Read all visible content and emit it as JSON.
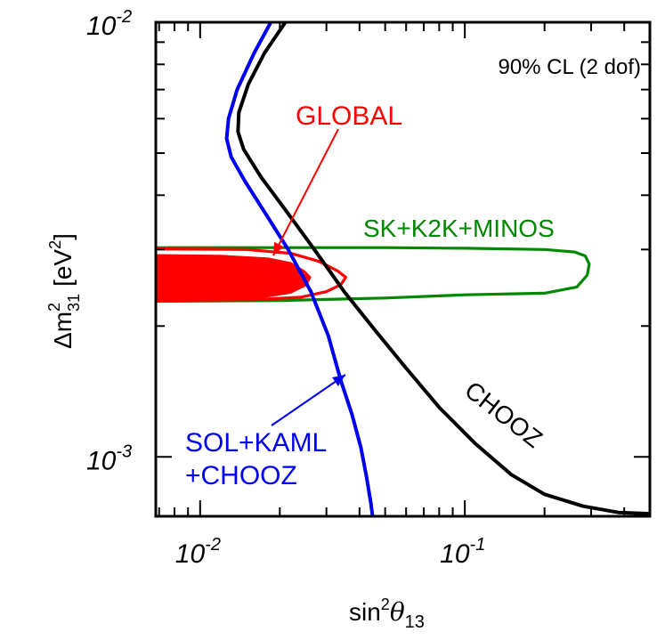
{
  "chart_data": {
    "type": "line",
    "title": "",
    "annotation": "90% CL (2 dof)",
    "xlabel": {
      "text": "sin",
      "sup": "2",
      "greek": "θ",
      "sub": "13"
    },
    "ylabel": {
      "prefix": "Δm",
      "sup": "2",
      "sub": "31",
      "unit": "[eV",
      "unit_sup": "2",
      "unit_close": "]"
    },
    "x_scale": "log",
    "y_scale": "log",
    "xlim": [
      0.0068,
      0.5
    ],
    "ylim": [
      0.00073,
      0.01
    ],
    "x_ticks": [
      {
        "value": 0.01,
        "base": "10",
        "exp": "-2"
      },
      {
        "value": 0.1,
        "base": "10",
        "exp": "-1"
      }
    ],
    "y_ticks": [
      {
        "value": 0.001,
        "base": "10",
        "exp": "-3"
      },
      {
        "value": 0.01,
        "base": "10",
        "exp": "-2"
      }
    ],
    "grid": false,
    "series": [
      {
        "name": "CHOOZ",
        "color": "#000000",
        "style": "line",
        "points": [
          [
            0.021,
            0.01
          ],
          [
            0.0175,
            0.0085
          ],
          [
            0.0152,
            0.0072
          ],
          [
            0.014,
            0.0062
          ],
          [
            0.0139,
            0.0056
          ],
          [
            0.0146,
            0.0051
          ],
          [
            0.017,
            0.0044
          ],
          [
            0.021,
            0.0037
          ],
          [
            0.027,
            0.003
          ],
          [
            0.035,
            0.0024
          ],
          [
            0.046,
            0.00195
          ],
          [
            0.06,
            0.0016
          ],
          [
            0.08,
            0.0013
          ],
          [
            0.11,
            0.00107
          ],
          [
            0.15,
            0.00091
          ],
          [
            0.2,
            0.00082
          ],
          [
            0.28,
            0.00077
          ],
          [
            0.38,
            0.000745
          ],
          [
            0.5,
            0.00074
          ]
        ]
      },
      {
        "name": "SOL+KAML +CHOOZ",
        "color": "#0000ee",
        "style": "line",
        "points": [
          [
            0.0185,
            0.01
          ],
          [
            0.016,
            0.0085
          ],
          [
            0.0138,
            0.007
          ],
          [
            0.0128,
            0.006
          ],
          [
            0.0126,
            0.0054
          ],
          [
            0.0131,
            0.0049
          ],
          [
            0.0148,
            0.0043
          ],
          [
            0.0178,
            0.0036
          ],
          [
            0.0215,
            0.003
          ],
          [
            0.0262,
            0.0024
          ],
          [
            0.0305,
            0.0019
          ],
          [
            0.034,
            0.0015
          ],
          [
            0.0375,
            0.00125
          ],
          [
            0.0405,
            0.00105
          ],
          [
            0.0425,
            0.0009
          ],
          [
            0.0442,
            0.00078
          ],
          [
            0.0448,
            0.00073
          ]
        ]
      },
      {
        "name": "SK+K2K+MINOS",
        "color": "#008800",
        "style": "closed",
        "points": [
          [
            0.0068,
            0.00303
          ],
          [
            0.05,
            0.00303
          ],
          [
            0.1,
            0.00302
          ],
          [
            0.2,
            0.003
          ],
          [
            0.26,
            0.00296
          ],
          [
            0.285,
            0.0029
          ],
          [
            0.295,
            0.00278
          ],
          [
            0.29,
            0.00262
          ],
          [
            0.265,
            0.00246
          ],
          [
            0.2,
            0.00238
          ],
          [
            0.1,
            0.00236
          ],
          [
            0.05,
            0.00232
          ],
          [
            0.02,
            0.00229
          ],
          [
            0.0068,
            0.00228
          ]
        ]
      },
      {
        "name": "GLOBAL",
        "color": "#ff0000",
        "style": "closed",
        "points": [
          [
            0.0068,
            0.00301
          ],
          [
            0.015,
            0.003
          ],
          [
            0.022,
            0.00294
          ],
          [
            0.028,
            0.00282
          ],
          [
            0.033,
            0.00268
          ],
          [
            0.0355,
            0.00259
          ],
          [
            0.034,
            0.00249
          ],
          [
            0.03,
            0.0024
          ],
          [
            0.024,
            0.00233
          ],
          [
            0.016,
            0.0023
          ],
          [
            0.0068,
            0.00229
          ]
        ]
      },
      {
        "name": "GLOBAL",
        "color": "#ff0000",
        "style": "filled",
        "points": [
          [
            0.0068,
            0.00292
          ],
          [
            0.012,
            0.00291
          ],
          [
            0.018,
            0.00287
          ],
          [
            0.022,
            0.0028
          ],
          [
            0.0248,
            0.00268
          ],
          [
            0.0262,
            0.00259
          ],
          [
            0.0252,
            0.00248
          ],
          [
            0.022,
            0.00238
          ],
          [
            0.017,
            0.00232
          ],
          [
            0.012,
            0.0023
          ],
          [
            0.0068,
            0.0023
          ]
        ]
      }
    ],
    "labels": [
      {
        "text": "GLOBAL",
        "color": "#ff0000"
      },
      {
        "text": "SK+K2K+MINOS",
        "color": "#008800"
      },
      {
        "text": "CHOOZ",
        "color": "#000000"
      },
      {
        "text": "SOL+KAML",
        "color": "#0000ee"
      },
      {
        "text": "+CHOOZ",
        "color": "#0000ee"
      }
    ]
  }
}
